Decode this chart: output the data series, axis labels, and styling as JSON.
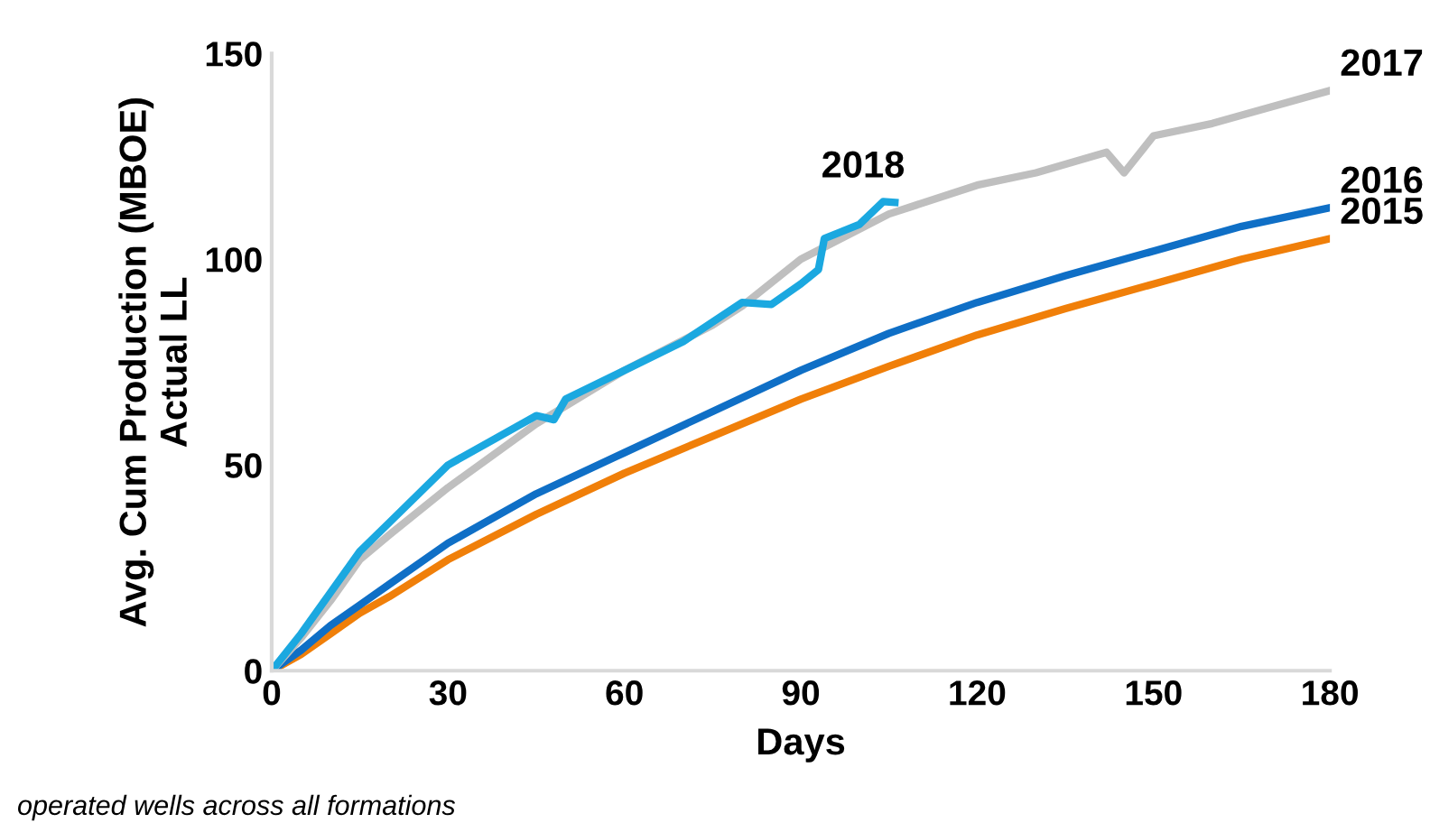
{
  "chart_data": {
    "type": "line",
    "xlabel": "Days",
    "ylabel": "Avg. Cum Production (MBOE)\nActual LL",
    "xlim": [
      0,
      180
    ],
    "xticks": [
      0,
      30,
      60,
      90,
      120,
      150,
      180
    ],
    "ylim": [
      0,
      150
    ],
    "yticks": [
      0,
      50,
      100,
      150
    ],
    "grid": false,
    "legend": false,
    "marker": "none",
    "line_style": "solid",
    "annotations": [
      "operated wells across all formations"
    ],
    "series": [
      {
        "name": "2015",
        "color": "#f07f09",
        "x": [
          0,
          5,
          10,
          15,
          20,
          30,
          45,
          60,
          75,
          90,
          105,
          120,
          135,
          150,
          165,
          180
        ],
        "values": [
          0,
          4,
          9,
          14,
          18,
          27,
          38,
          48,
          57,
          66,
          74,
          81.6,
          88,
          94,
          100,
          105
        ]
      },
      {
        "name": "2016",
        "color": "#0f6fc6",
        "x": [
          0,
          5,
          10,
          15,
          20,
          30,
          45,
          60,
          75,
          90,
          105,
          120,
          135,
          150,
          165,
          180
        ],
        "values": [
          0,
          5,
          11,
          16,
          21,
          31,
          43,
          53,
          63,
          73,
          82,
          89.5,
          96,
          102,
          108,
          112.5
        ]
      },
      {
        "name": "2017",
        "color": "#bfbfbf",
        "x": [
          0,
          5,
          10,
          15,
          20,
          30,
          45,
          60,
          75,
          80,
          90,
          105,
          120,
          130,
          142,
          145,
          150,
          160,
          170,
          180
        ],
        "values": [
          0,
          8,
          17,
          27,
          33,
          44.5,
          60,
          73,
          84,
          88.6,
          100,
          111,
          118,
          121,
          126,
          121,
          130,
          133,
          137,
          141
        ]
      },
      {
        "name": "2018",
        "color": "#1ba8e0",
        "x": [
          0,
          5,
          10,
          15,
          20,
          30,
          40,
          45,
          48,
          50,
          60,
          70,
          80,
          85,
          90,
          93,
          94,
          100,
          104,
          106
        ],
        "values": [
          0,
          9,
          19,
          29,
          36,
          50,
          58,
          62,
          61,
          66,
          73,
          80,
          89.5,
          89,
          94,
          97.5,
          105,
          108.5,
          114,
          113.8
        ]
      }
    ]
  }
}
